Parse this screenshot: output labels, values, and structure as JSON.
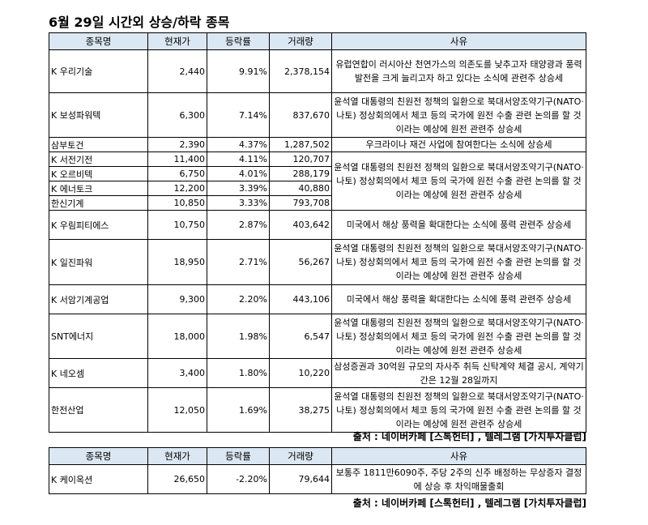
{
  "title": "6월 29일  시간외 상승/하락 종목",
  "rising": {
    "headers": [
      "종목명",
      "현재가",
      "등락률",
      "거래량",
      "사유"
    ],
    "rows": [
      {
        "name": "K 우리기술",
        "price": "2,440",
        "change": "9.91%",
        "volume": "2,378,154"
      },
      {
        "name": "K 보성파워텍",
        "price": "6,300",
        "change": "7.14%",
        "volume": "837,670"
      },
      {
        "name": "  삼부토건",
        "price": "2,390",
        "change": "4.37%",
        "volume": "1,287,502"
      },
      {
        "name": "K 서전기전",
        "price": "11,400",
        "change": "4.11%",
        "volume": "120,707"
      },
      {
        "name": "K 오르비텍",
        "price": "6,750",
        "change": "4.01%",
        "volume": "288,179"
      },
      {
        "name": "K 에너토크",
        "price": "12,200",
        "change": "3.39%",
        "volume": "40,880"
      },
      {
        "name": "  한신기계",
        "price": "10,850",
        "change": "3.33%",
        "volume": "793,708"
      },
      {
        "name": "K 우림피티에스",
        "price": "10,750",
        "change": "2.87%",
        "volume": "403,642"
      },
      {
        "name": "K 일진파워",
        "price": "18,950",
        "change": "2.71%",
        "volume": "56,267"
      },
      {
        "name": "K 서암기계공업",
        "price": "9,300",
        "change": "2.20%",
        "volume": "443,106"
      },
      {
        "name": "  SNT에너지",
        "price": "18,000",
        "change": "1.98%",
        "volume": "6,547"
      },
      {
        "name": "K 네오셈",
        "price": "3,400",
        "change": "1.80%",
        "volume": "10,220"
      },
      {
        "name": "  한전산업",
        "price": "12,050",
        "change": "1.69%",
        "volume": "38,275"
      }
    ],
    "reasons": [
      "유럽연합이 러시아산 천연가스의 의존도를 낮추고자 태양광과 풍력 발전을 크게 늘리고자 하고 있다는 소식에 관련주 상승세",
      "윤석열 대통령의 친원전 정책의 일환으로 북대서양조약기구(NATO·나토) 정상회의에서 체코 등의 국가에 원전 수출 관련 논의를 할 것이라는 예상에 원전 관련주 상승세",
      "우크라이나 재건 사업에 참여한다는 소식에 상승세",
      "윤석열 대통령의 친원전 정책의 일환으로 북대서양조약기구(NATO·나토) 정상회의에서 체코 등의 국가에 원전 수출 관련 논의를 할 것이라는 예상에 원전 관련주 상승세",
      "미국에서 해상 풍력을 확대한다는 소식에 풍력 관련주 상승세",
      "윤석열 대통령의 친원전 정책의 일환으로 북대서양조약기구(NATO·나토) 정상회의에서 체코 등의 국가에 원전 수출 관련 논의를 할 것이라는 예상에 원전 관련주 상승세",
      "미국에서 해상 풍력을 확대한다는 소식에 풍력 관련주 상승세",
      "윤석열 대통령의 친원전 정책의 일환으로 북대서양조약기구(NATO·나토) 정상회의에서 체코 등의 국가에 원전 수출 관련 논의를 할 것이라는 예상에 원전 관련주 상승세",
      "삼성증권과 30억원 규모의 자사주 취득 신탁계약 체결 공시, 계약기간은 12월 28일까지",
      "윤석열 대통령의 친원전 정책의 일환으로 북대서양조약기구(NATO·나토) 정상회의에서 체코 등의 국가에 원전 수출 관련 논의를 할 것이라는 예상에 원전 관련주 상승세"
    ],
    "source": "출처 : 네이버카페 [스톡헌터] , 텔레그램 [가치투자클럽]"
  },
  "falling": {
    "headers": [
      "종목명",
      "현재가",
      "등락률",
      "거래량",
      "사유"
    ],
    "rows": [
      {
        "name": "K 케이옥션",
        "price": "26,650",
        "change": "-2.20%",
        "volume": "79,644"
      }
    ],
    "reasons": [
      "보통주 1811만6090주, 주당 2주의 신주 배정하는 무상증자 결정에 상승 후 차익매물출회"
    ],
    "source": "출처 : 네이버카페 [스톡헌터] , 텔레그램 [가치투자클럽]"
  }
}
